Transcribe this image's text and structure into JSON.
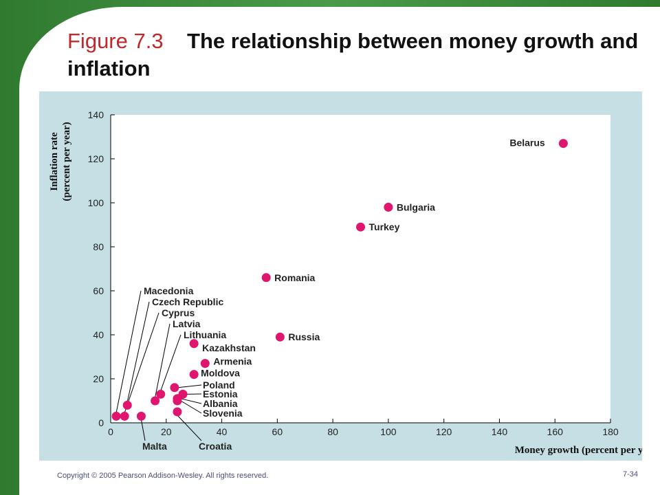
{
  "slide": {
    "figure_label": "Figure 7.3",
    "title_text": "The relationship between money growth and inflation",
    "footer": "Copyright © 2005 Pearson Addison-Wesley. All rights reserved.",
    "page_number": "7-34"
  },
  "chart_data": {
    "type": "scatter",
    "title": "",
    "xlabel": "Money growth (percent per year)",
    "ylabel_line1": "Inflation rate",
    "ylabel_line2": "(percent per year)",
    "xlim": [
      0,
      180
    ],
    "ylim": [
      0,
      140
    ],
    "x_ticks": [
      0,
      20,
      40,
      60,
      80,
      100,
      120,
      140,
      160,
      180
    ],
    "y_ticks": [
      0,
      20,
      40,
      60,
      80,
      100,
      120,
      140
    ],
    "grid": false,
    "marker_color": "#e0156e",
    "points": [
      {
        "label": "Belarus",
        "x": 163,
        "y": 127
      },
      {
        "label": "Bulgaria",
        "x": 100,
        "y": 98
      },
      {
        "label": "Turkey",
        "x": 90,
        "y": 89
      },
      {
        "label": "Romania",
        "x": 56,
        "y": 66
      },
      {
        "label": "Russia",
        "x": 61,
        "y": 39
      },
      {
        "label": "Kazakhstan",
        "x": 30,
        "y": 36
      },
      {
        "label": "Armenia",
        "x": 34,
        "y": 27
      },
      {
        "label": "Moldova",
        "x": 30,
        "y": 22
      },
      {
        "label": "Poland",
        "x": 23,
        "y": 16
      },
      {
        "label": "Estonia",
        "x": 26,
        "y": 13
      },
      {
        "label": "Albania",
        "x": 24,
        "y": 11
      },
      {
        "label": "Slovenia",
        "x": 24,
        "y": 10
      },
      {
        "label": "Croatia",
        "x": 24,
        "y": 5
      },
      {
        "label": "Macedonia",
        "x": 2,
        "y": 3
      },
      {
        "label": "Czech Republic",
        "x": 6,
        "y": 8
      },
      {
        "label": "Cyprus",
        "x": 5,
        "y": 3
      },
      {
        "label": "Latvia",
        "x": 16,
        "y": 10
      },
      {
        "label": "Lithuania",
        "x": 18,
        "y": 13
      },
      {
        "label": "Malta",
        "x": 11,
        "y": 3
      }
    ]
  }
}
